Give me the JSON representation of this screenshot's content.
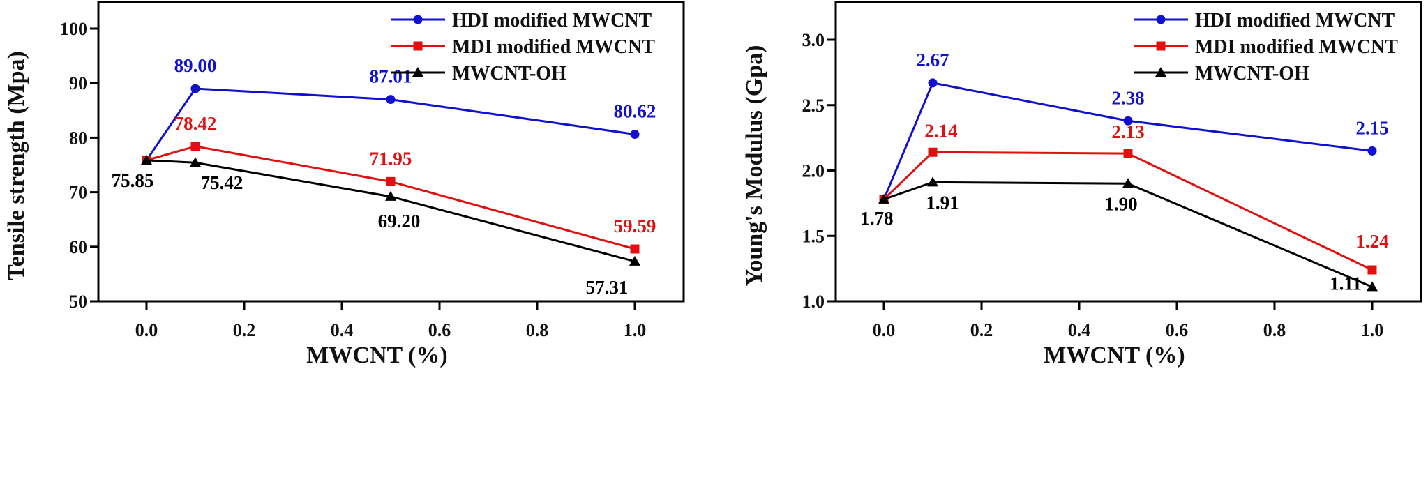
{
  "chart_data": [
    {
      "type": "line",
      "title": "",
      "xlabel": "MWCNT (%)",
      "ylabel": "Tensile strength (Mpa)",
      "xlim": [
        -0.1,
        1.1
      ],
      "ylim": [
        50,
        104
      ],
      "xticks": [
        0.0,
        0.2,
        0.4,
        0.6,
        0.8,
        1.0
      ],
      "xtick_labels": [
        "0.0",
        "0.2",
        "0.4",
        "0.6",
        "0.8",
        "1.0"
      ],
      "yticks": [
        50,
        60,
        70,
        80,
        90,
        100
      ],
      "ytick_labels": [
        "50",
        "60",
        "70",
        "80",
        "90",
        "100"
      ],
      "grid": false,
      "legend_position": "top-right",
      "x": [
        0.0,
        0.1,
        0.5,
        1.0
      ],
      "series": [
        {
          "name": "HDI modified MWCNT",
          "color": "#1010d0",
          "marker": "circle",
          "values": [
            75.85,
            89.0,
            87.01,
            80.62
          ],
          "labels": [
            "",
            "89.00",
            "87.01",
            "80.62"
          ]
        },
        {
          "name": "MDI modified MWCNT",
          "color": "#e01010",
          "marker": "square",
          "values": [
            75.85,
            78.42,
            71.95,
            59.59
          ],
          "labels": [
            "",
            "78.42",
            "71.95",
            "59.59"
          ]
        },
        {
          "name": "MWCNT-OH",
          "color": "#000000",
          "marker": "triangle",
          "values": [
            75.85,
            75.42,
            69.2,
            57.31
          ],
          "labels": [
            "75.85",
            "75.42",
            "69.20",
            "57.31"
          ]
        }
      ]
    },
    {
      "type": "line",
      "title": "",
      "xlabel": "MWCNT (%)",
      "ylabel": "Young's Modulus (Gpa)",
      "xlim": [
        -0.1,
        1.1
      ],
      "ylim": [
        1.0,
        3.27
      ],
      "xticks": [
        0.0,
        0.2,
        0.4,
        0.6,
        0.8,
        1.0
      ],
      "xtick_labels": [
        "0.0",
        "0.2",
        "0.4",
        "0.6",
        "0.8",
        "1.0"
      ],
      "yticks": [
        1.0,
        1.5,
        2.0,
        2.5,
        3.0
      ],
      "ytick_labels": [
        "1.0",
        "1.5",
        "2.0",
        "2.5",
        "3.0"
      ],
      "grid": false,
      "legend_position": "top-right",
      "x": [
        0.0,
        0.1,
        0.5,
        1.0
      ],
      "series": [
        {
          "name": "HDI modified MWCNT",
          "color": "#1010d0",
          "marker": "circle",
          "values": [
            1.78,
            2.67,
            2.38,
            2.15
          ],
          "labels": [
            "",
            "2.67",
            "2.38",
            "2.15"
          ]
        },
        {
          "name": "MDI modified MWCNT",
          "color": "#e01010",
          "marker": "square",
          "values": [
            1.78,
            2.14,
            2.13,
            1.24
          ],
          "labels": [
            "",
            "2.14",
            "2.13",
            "1.24"
          ]
        },
        {
          "name": "MWCNT-OH",
          "color": "#000000",
          "marker": "triangle",
          "values": [
            1.78,
            1.91,
            1.9,
            1.11
          ],
          "labels": [
            "1.78",
            "1.91",
            "1.90",
            "1.11"
          ]
        }
      ]
    }
  ]
}
